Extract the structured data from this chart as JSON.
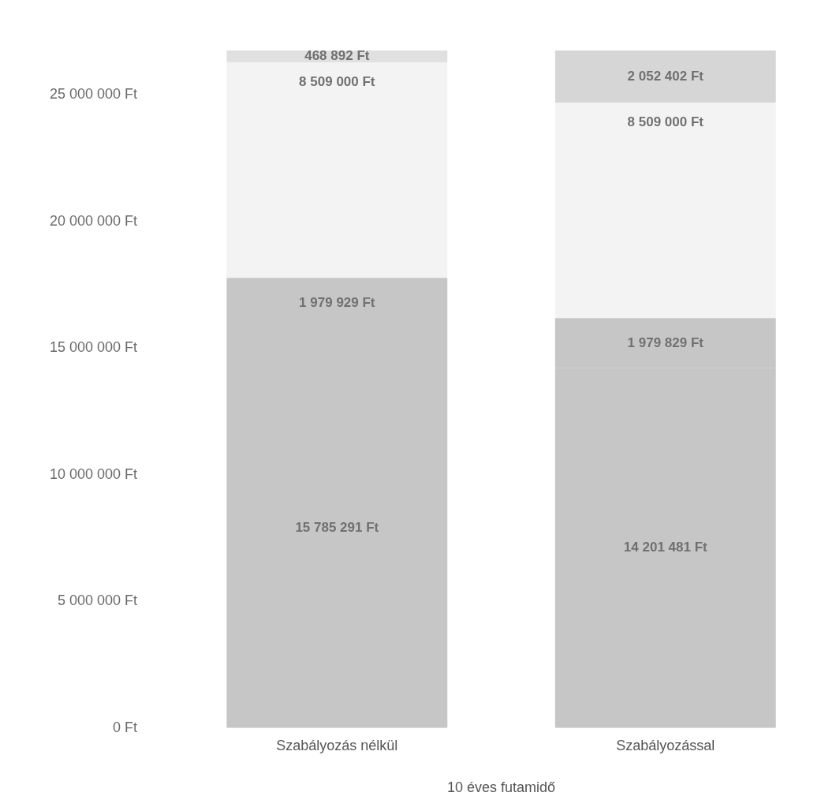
{
  "chart_data": {
    "type": "bar",
    "stacked": true,
    "xlabel": "10 éves futamidő",
    "categories": [
      "Szabályozás nélkül",
      "Szabályozással"
    ],
    "series": [
      {
        "color": "#c6c6c6",
        "values": [
          15785291,
          14201481
        ],
        "value_labels": [
          "15 785 291 Ft",
          "14 201 481 Ft"
        ]
      },
      {
        "color": "#c6c6c6",
        "values": [
          1979929,
          1979829
        ],
        "value_labels": [
          "1 979 929 Ft",
          "1 979 829 Ft"
        ]
      },
      {
        "color": "#f3f3f3",
        "values": [
          8509000,
          8509000
        ],
        "value_labels": [
          "8 509 000 Ft",
          "8 509 000 Ft"
        ]
      },
      {
        "colors": [
          "#e0e0e0",
          "#d6d6d6"
        ],
        "values": [
          468892,
          2052402
        ],
        "value_labels": [
          "468 892 Ft",
          "2 052 402 Ft"
        ]
      }
    ],
    "ylim": [
      0,
      26750000
    ],
    "yticks": [
      {
        "value": 0,
        "label": "0 Ft"
      },
      {
        "value": 5000000,
        "label": "5 000 000 Ft"
      },
      {
        "value": 10000000,
        "label": "10 000 000 Ft"
      },
      {
        "value": 15000000,
        "label": "15 000 000 Ft"
      },
      {
        "value": 20000000,
        "label": "20 000 000 Ft"
      },
      {
        "value": 25000000,
        "label": "25 000 000 Ft"
      }
    ],
    "grid": false,
    "legend": false
  }
}
